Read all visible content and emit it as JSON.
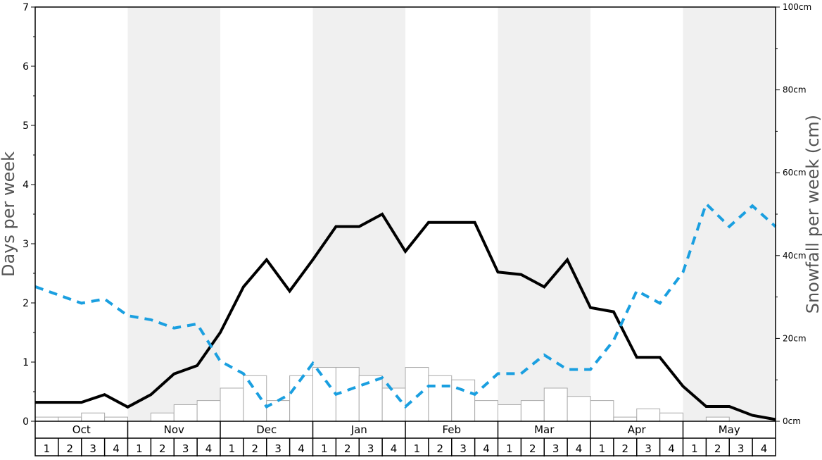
{
  "chart_data": {
    "type": "bar+line",
    "months": [
      "Oct",
      "Nov",
      "Dec",
      "Jan",
      "Feb",
      "Mar",
      "Apr",
      "May"
    ],
    "weeks": [
      "1",
      "2",
      "3",
      "4"
    ],
    "x_count": 32,
    "left_axis": {
      "label": "Days per week",
      "ylim": [
        0,
        7
      ],
      "ticks": [
        "0",
        "1",
        "2",
        "3",
        "4",
        "5",
        "6",
        "7"
      ]
    },
    "right_axis": {
      "label": "Snowfall per week (cm)",
      "ylim": [
        0,
        100
      ],
      "ticks": [
        "0cm",
        "20cm",
        "40cm",
        "60cm",
        "80cm",
        "100cm"
      ]
    },
    "shaded_months": [
      "Nov",
      "Jan",
      "Mar",
      "May"
    ],
    "colors": {
      "shade": "#f0f0f0",
      "bar_fill": "#ffffff",
      "bar_stroke": "#aaaaaa",
      "days_line": "#000000",
      "snow_line": "#1a9fe0"
    },
    "series": [
      {
        "kind": "bar",
        "axis": "left",
        "values": [
          0.07,
          0.07,
          0.14,
          0.07,
          0,
          0.14,
          0.28,
          0.35,
          0.56,
          0.77,
          0.35,
          0.77,
          0.91,
          0.91,
          0.77,
          0.56,
          0.91,
          0.77,
          0.7,
          0.35,
          0.28,
          0.35,
          0.56,
          0.42,
          0.35,
          0.07,
          0.21,
          0.14,
          0,
          0.07,
          0,
          0
        ]
      },
      {
        "kind": "line",
        "axis": "left",
        "style": "solid",
        "values": [
          0.32,
          0.32,
          0.32,
          0.45,
          0.24,
          0.45,
          0.8,
          0.94,
          1.5,
          2.27,
          2.73,
          2.2,
          2.73,
          3.29,
          3.29,
          3.5,
          2.87,
          3.36,
          3.36,
          3.36,
          2.52,
          2.48,
          2.27,
          2.73,
          1.92,
          1.85,
          1.08,
          1.08,
          0.59,
          0.25,
          0.25,
          0.1,
          0.03
        ]
      },
      {
        "kind": "line",
        "axis": "right",
        "style": "dashed",
        "values": [
          32.5,
          30.5,
          28.5,
          29.5,
          25.5,
          24.5,
          22.5,
          23.5,
          14.5,
          11.5,
          3.5,
          6.5,
          14,
          6.5,
          8.5,
          10.5,
          3.5,
          8.5,
          8.5,
          6.5,
          11.5,
          11.5,
          16,
          12.5,
          12.5,
          19.5,
          31.5,
          28.5,
          36,
          52.5,
          47,
          52,
          47
        ]
      }
    ]
  }
}
